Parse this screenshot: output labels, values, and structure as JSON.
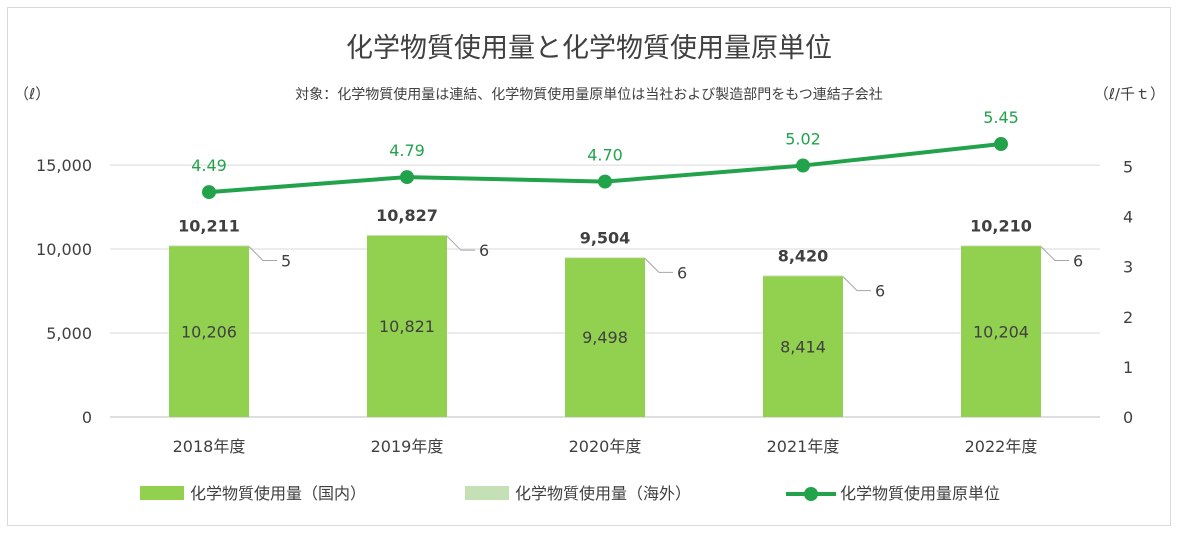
{
  "chart_data": {
    "type": "bar",
    "title": "化学物質使用量と化学物質使用量原単位",
    "subtitle": "対象：化学物質使用量は連結、化学物質使用量原単位は当社および製造部門をもつ連結子会社",
    "left_unit": "（ℓ）",
    "right_unit": "（ℓ/千ｔ）",
    "categories": [
      "2018年度",
      "2019年度",
      "2020年度",
      "2021年度",
      "2022年度"
    ],
    "ylim": [
      0,
      17000
    ],
    "y2lim": [
      0,
      5.7
    ],
    "yticks": [
      {
        "value": 0,
        "label": "0"
      },
      {
        "value": 5000,
        "label": "5,000"
      },
      {
        "value": 10000,
        "label": "10,000"
      },
      {
        "value": 15000,
        "label": "15,000"
      }
    ],
    "y2ticks": [
      {
        "value": 0,
        "label": "0"
      },
      {
        "value": 1,
        "label": "1"
      },
      {
        "value": 2,
        "label": "2"
      },
      {
        "value": 3,
        "label": "3"
      },
      {
        "value": 4,
        "label": "4"
      },
      {
        "value": 5,
        "label": "5"
      }
    ],
    "series": [
      {
        "name": "化学物質使用量（国内）",
        "kind": "bar",
        "color": "#92d050",
        "values": [
          10206,
          10821,
          9498,
          8414,
          10204
        ],
        "labels": [
          "10,206",
          "10,821",
          "9,498",
          "8,414",
          "10,204"
        ]
      },
      {
        "name": "化学物質使用量（海外）",
        "kind": "bar",
        "color": "#c5e0b4",
        "values": [
          5,
          6,
          6,
          6,
          6
        ],
        "labels": [
          "5",
          "6",
          "6",
          "6",
          "6"
        ]
      },
      {
        "name": "化学物質使用量原単位",
        "kind": "line",
        "axis": "right",
        "color": "#22a34b",
        "values": [
          4.49,
          4.79,
          4.7,
          5.02,
          5.45
        ],
        "labels": [
          "4.49",
          "4.79",
          "4.70",
          "5.02",
          "5.45"
        ]
      }
    ],
    "totals": [
      "10,211",
      "10,827",
      "9,504",
      "8,420",
      "10,210"
    ],
    "gridlines": true,
    "legend_position": "bottom"
  }
}
